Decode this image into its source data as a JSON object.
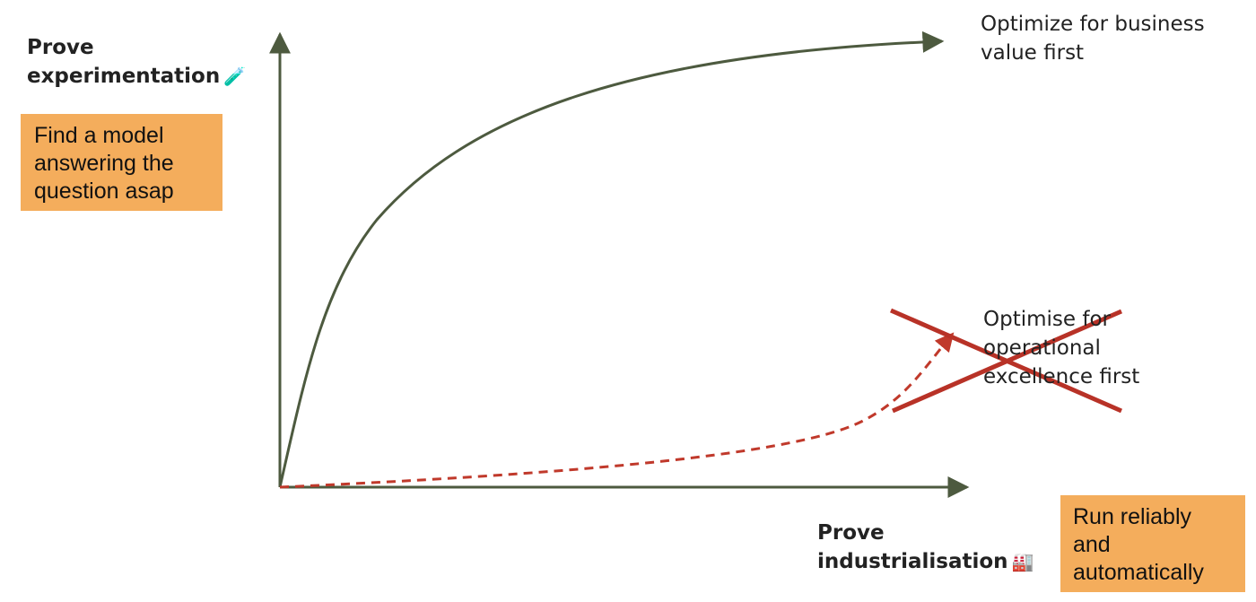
{
  "y_axis_title": {
    "lines": [
      "Prove",
      "experimentation"
    ],
    "icon": "test-tube-icon",
    "icon_glyph": "🧪"
  },
  "x_axis_title": {
    "lines": [
      "Prove",
      "industrialisation"
    ],
    "icon": "factory-icon",
    "icon_glyph": "🏭"
  },
  "experiment_note": {
    "lines": [
      "Find a model",
      "answering the",
      "question asap"
    ],
    "color": "#f4ad5c"
  },
  "industrial_note": {
    "lines": [
      "Run reliably",
      "and",
      "automatically"
    ],
    "color": "#f4ad5c"
  },
  "business_curve": {
    "label_lines": [
      "Optimize for business",
      "value first"
    ],
    "color": "#4d5a3f",
    "style": "solid"
  },
  "operational_curve": {
    "label_lines": [
      "Optimise for",
      "operational",
      "excellence first"
    ],
    "color": "#c0392b",
    "style": "dashed",
    "crossed_out": true
  }
}
